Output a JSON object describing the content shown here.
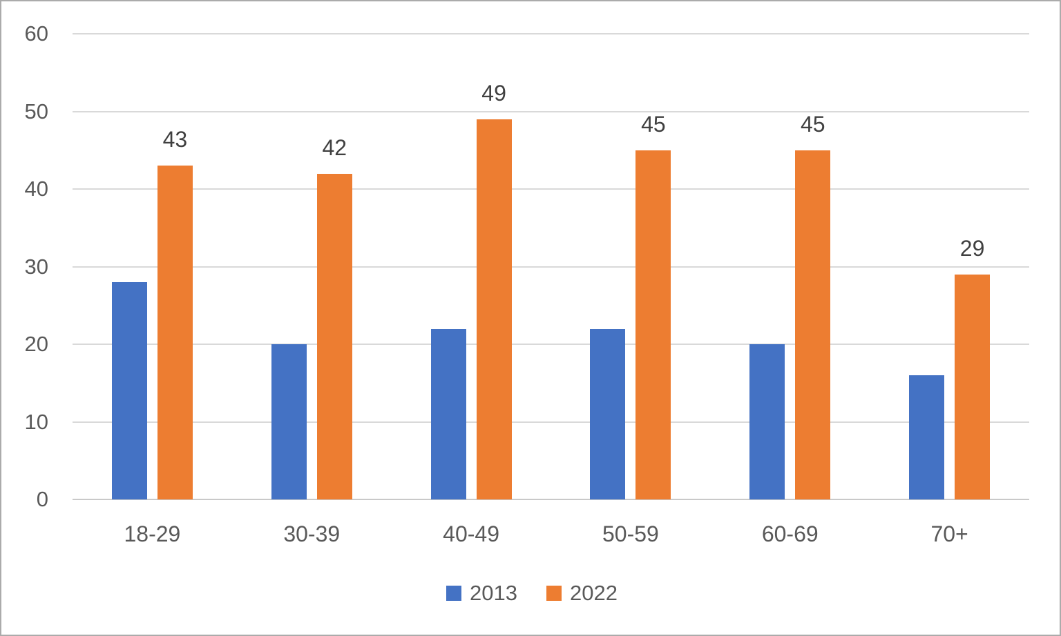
{
  "chart_data": {
    "type": "bar",
    "title": "",
    "categories": [
      "18-29",
      "30-39",
      "40-49",
      "50-59",
      "60-69",
      "70+"
    ],
    "series": [
      {
        "name": "2013",
        "color": "#4472c4",
        "values": [
          28,
          20,
          22,
          22,
          20,
          16
        ],
        "show_data_labels": false
      },
      {
        "name": "2022",
        "color": "#ed7d31",
        "values": [
          43,
          42,
          49,
          45,
          45,
          29
        ],
        "show_data_labels": true
      }
    ],
    "data_labels_2022": [
      "43",
      "42",
      "49",
      "45",
      "45",
      "29"
    ],
    "ylim": [
      0,
      60
    ],
    "yticks": [
      0,
      10,
      20,
      30,
      40,
      50,
      60
    ],
    "grid": true,
    "legend_position": "bottom",
    "style": {
      "gridline_color": "#d9d9d9",
      "axis_line_color": "#c9c9c9",
      "tick_label_color": "#595959",
      "data_label_color": "#404040",
      "background": "#ffffff",
      "border_color": "#ababab"
    }
  }
}
